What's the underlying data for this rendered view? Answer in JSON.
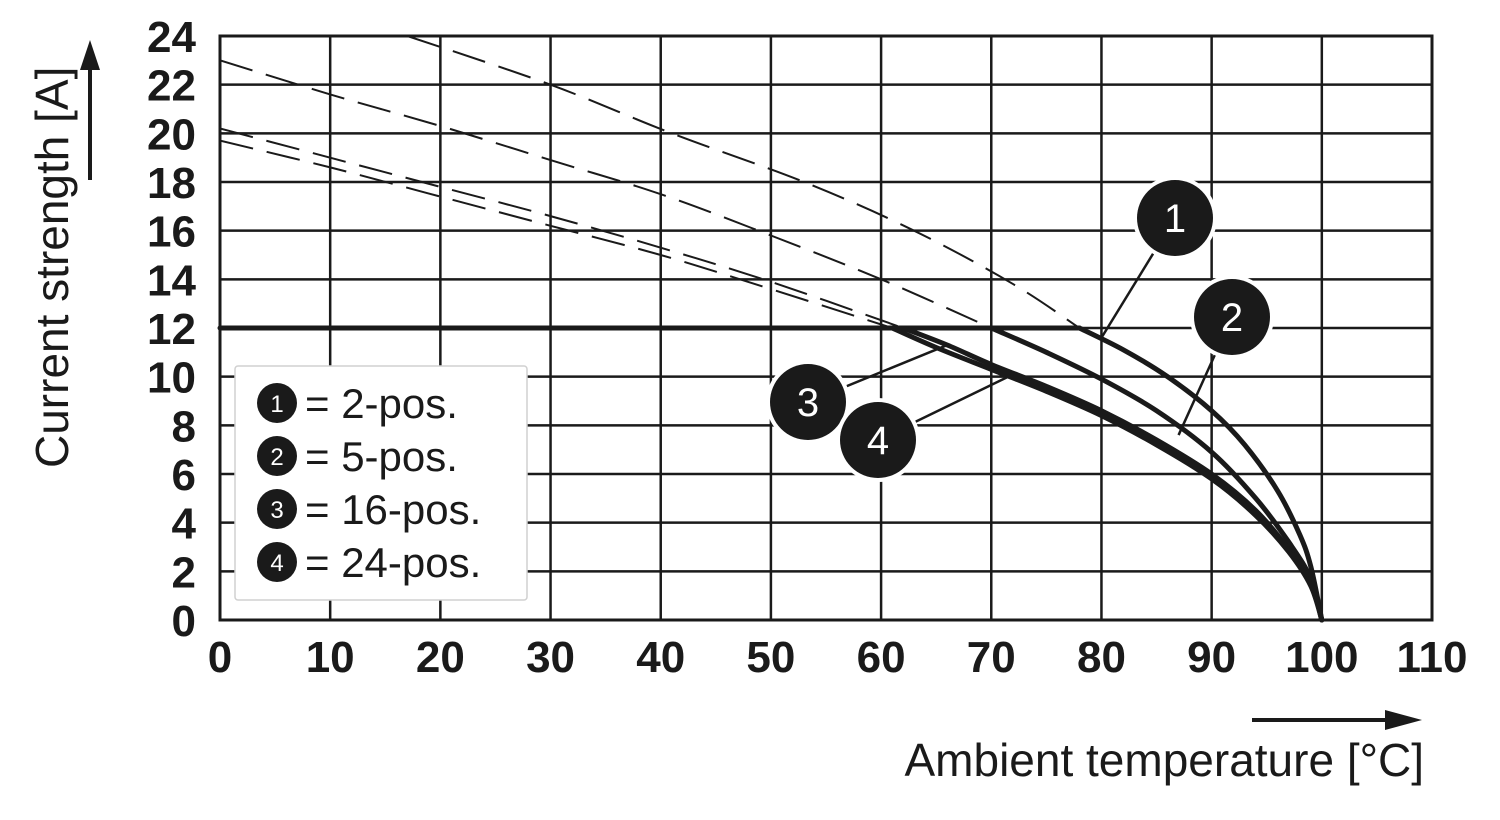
{
  "chart_data": {
    "type": "line",
    "xlabel": "Ambient temperature [°C]",
    "ylabel": "Current strength [A]",
    "xlim": [
      0,
      110
    ],
    "ylim": [
      0,
      24
    ],
    "xticks": [
      "0",
      "10",
      "20",
      "30",
      "40",
      "50",
      "60",
      "70",
      "80",
      "90",
      "100",
      "110"
    ],
    "yticks": [
      "0",
      "2",
      "4",
      "6",
      "8",
      "10",
      "12",
      "14",
      "16",
      "18",
      "20",
      "22",
      "24"
    ],
    "grid": true,
    "limit_line": {
      "y": 12,
      "x": [
        0,
        78
      ]
    },
    "series": [
      {
        "marker": "1",
        "name": "2-pos.",
        "derating": {
          "x": [
            78,
            82,
            86,
            90,
            93,
            96,
            98,
            99,
            100
          ],
          "y": [
            12,
            11.1,
            10.0,
            8.6,
            7.2,
            5.3,
            3.5,
            2.2,
            0
          ]
        },
        "dashed": {
          "x": [
            17,
            30,
            41,
            53,
            63,
            72,
            78
          ],
          "y": [
            24,
            22,
            20,
            18,
            16,
            13.8,
            12
          ]
        }
      },
      {
        "marker": "2",
        "name": "5-pos.",
        "derating": {
          "x": [
            70,
            75,
            80,
            85,
            90,
            94,
            97,
            99,
            100
          ],
          "y": [
            12,
            11.0,
            9.9,
            8.6,
            6.9,
            5.0,
            3.2,
            1.7,
            0
          ]
        },
        "dashed": {
          "x": [
            0,
            10,
            20,
            30,
            40,
            50,
            60,
            70
          ],
          "y": [
            23,
            21.6,
            20.3,
            18.9,
            17.5,
            15.8,
            14.0,
            12
          ]
        }
      },
      {
        "marker": "3",
        "name": "16-pos.",
        "derating": {
          "x": [
            62,
            66,
            70,
            75,
            80,
            85,
            90,
            94,
            97,
            99,
            100
          ],
          "y": [
            12,
            11.3,
            10.5,
            9.6,
            8.6,
            7.4,
            6.0,
            4.5,
            2.9,
            1.5,
            0
          ]
        },
        "dashed": {
          "x": [
            0,
            10,
            20,
            30,
            40,
            50,
            62
          ],
          "y": [
            20.2,
            19.0,
            17.8,
            16.6,
            15.3,
            13.9,
            12
          ]
        }
      },
      {
        "marker": "4",
        "name": "24-pos.",
        "derating": {
          "x": [
            61,
            65,
            70,
            75,
            80,
            85,
            90,
            94,
            97,
            99,
            100
          ],
          "y": [
            12,
            11.2,
            10.3,
            9.4,
            8.4,
            7.2,
            5.8,
            4.3,
            2.8,
            1.4,
            0
          ]
        },
        "dashed": {
          "x": [
            0,
            10,
            20,
            30,
            40,
            50,
            61
          ],
          "y": [
            19.7,
            18.6,
            17.4,
            16.2,
            15.0,
            13.6,
            12
          ]
        }
      }
    ],
    "legend": {
      "placement": "left",
      "entries": [
        {
          "marker": "1",
          "text": "= 2-pos."
        },
        {
          "marker": "2",
          "text": "= 5-pos."
        },
        {
          "marker": "3",
          "text": "= 16-pos."
        },
        {
          "marker": "4",
          "text": "= 24-pos."
        }
      ]
    },
    "callouts": [
      {
        "marker": "1",
        "points_to_series": "1",
        "at": {
          "x": 80,
          "y": 11.6
        }
      },
      {
        "marker": "2",
        "points_to_series": "2",
        "at": {
          "x": 87,
          "y": 7.6
        }
      },
      {
        "marker": "3",
        "points_to_series": "3",
        "at": {
          "x": 66,
          "y": 11.3
        }
      },
      {
        "marker": "4",
        "points_to_series": "4",
        "at": {
          "x": 72,
          "y": 10.1
        }
      }
    ],
    "colors": {
      "line": "#1a1a1a",
      "grid": "#1a1a1a",
      "marker_fill": "#1a1a1a",
      "marker_text": "#ffffff"
    }
  }
}
